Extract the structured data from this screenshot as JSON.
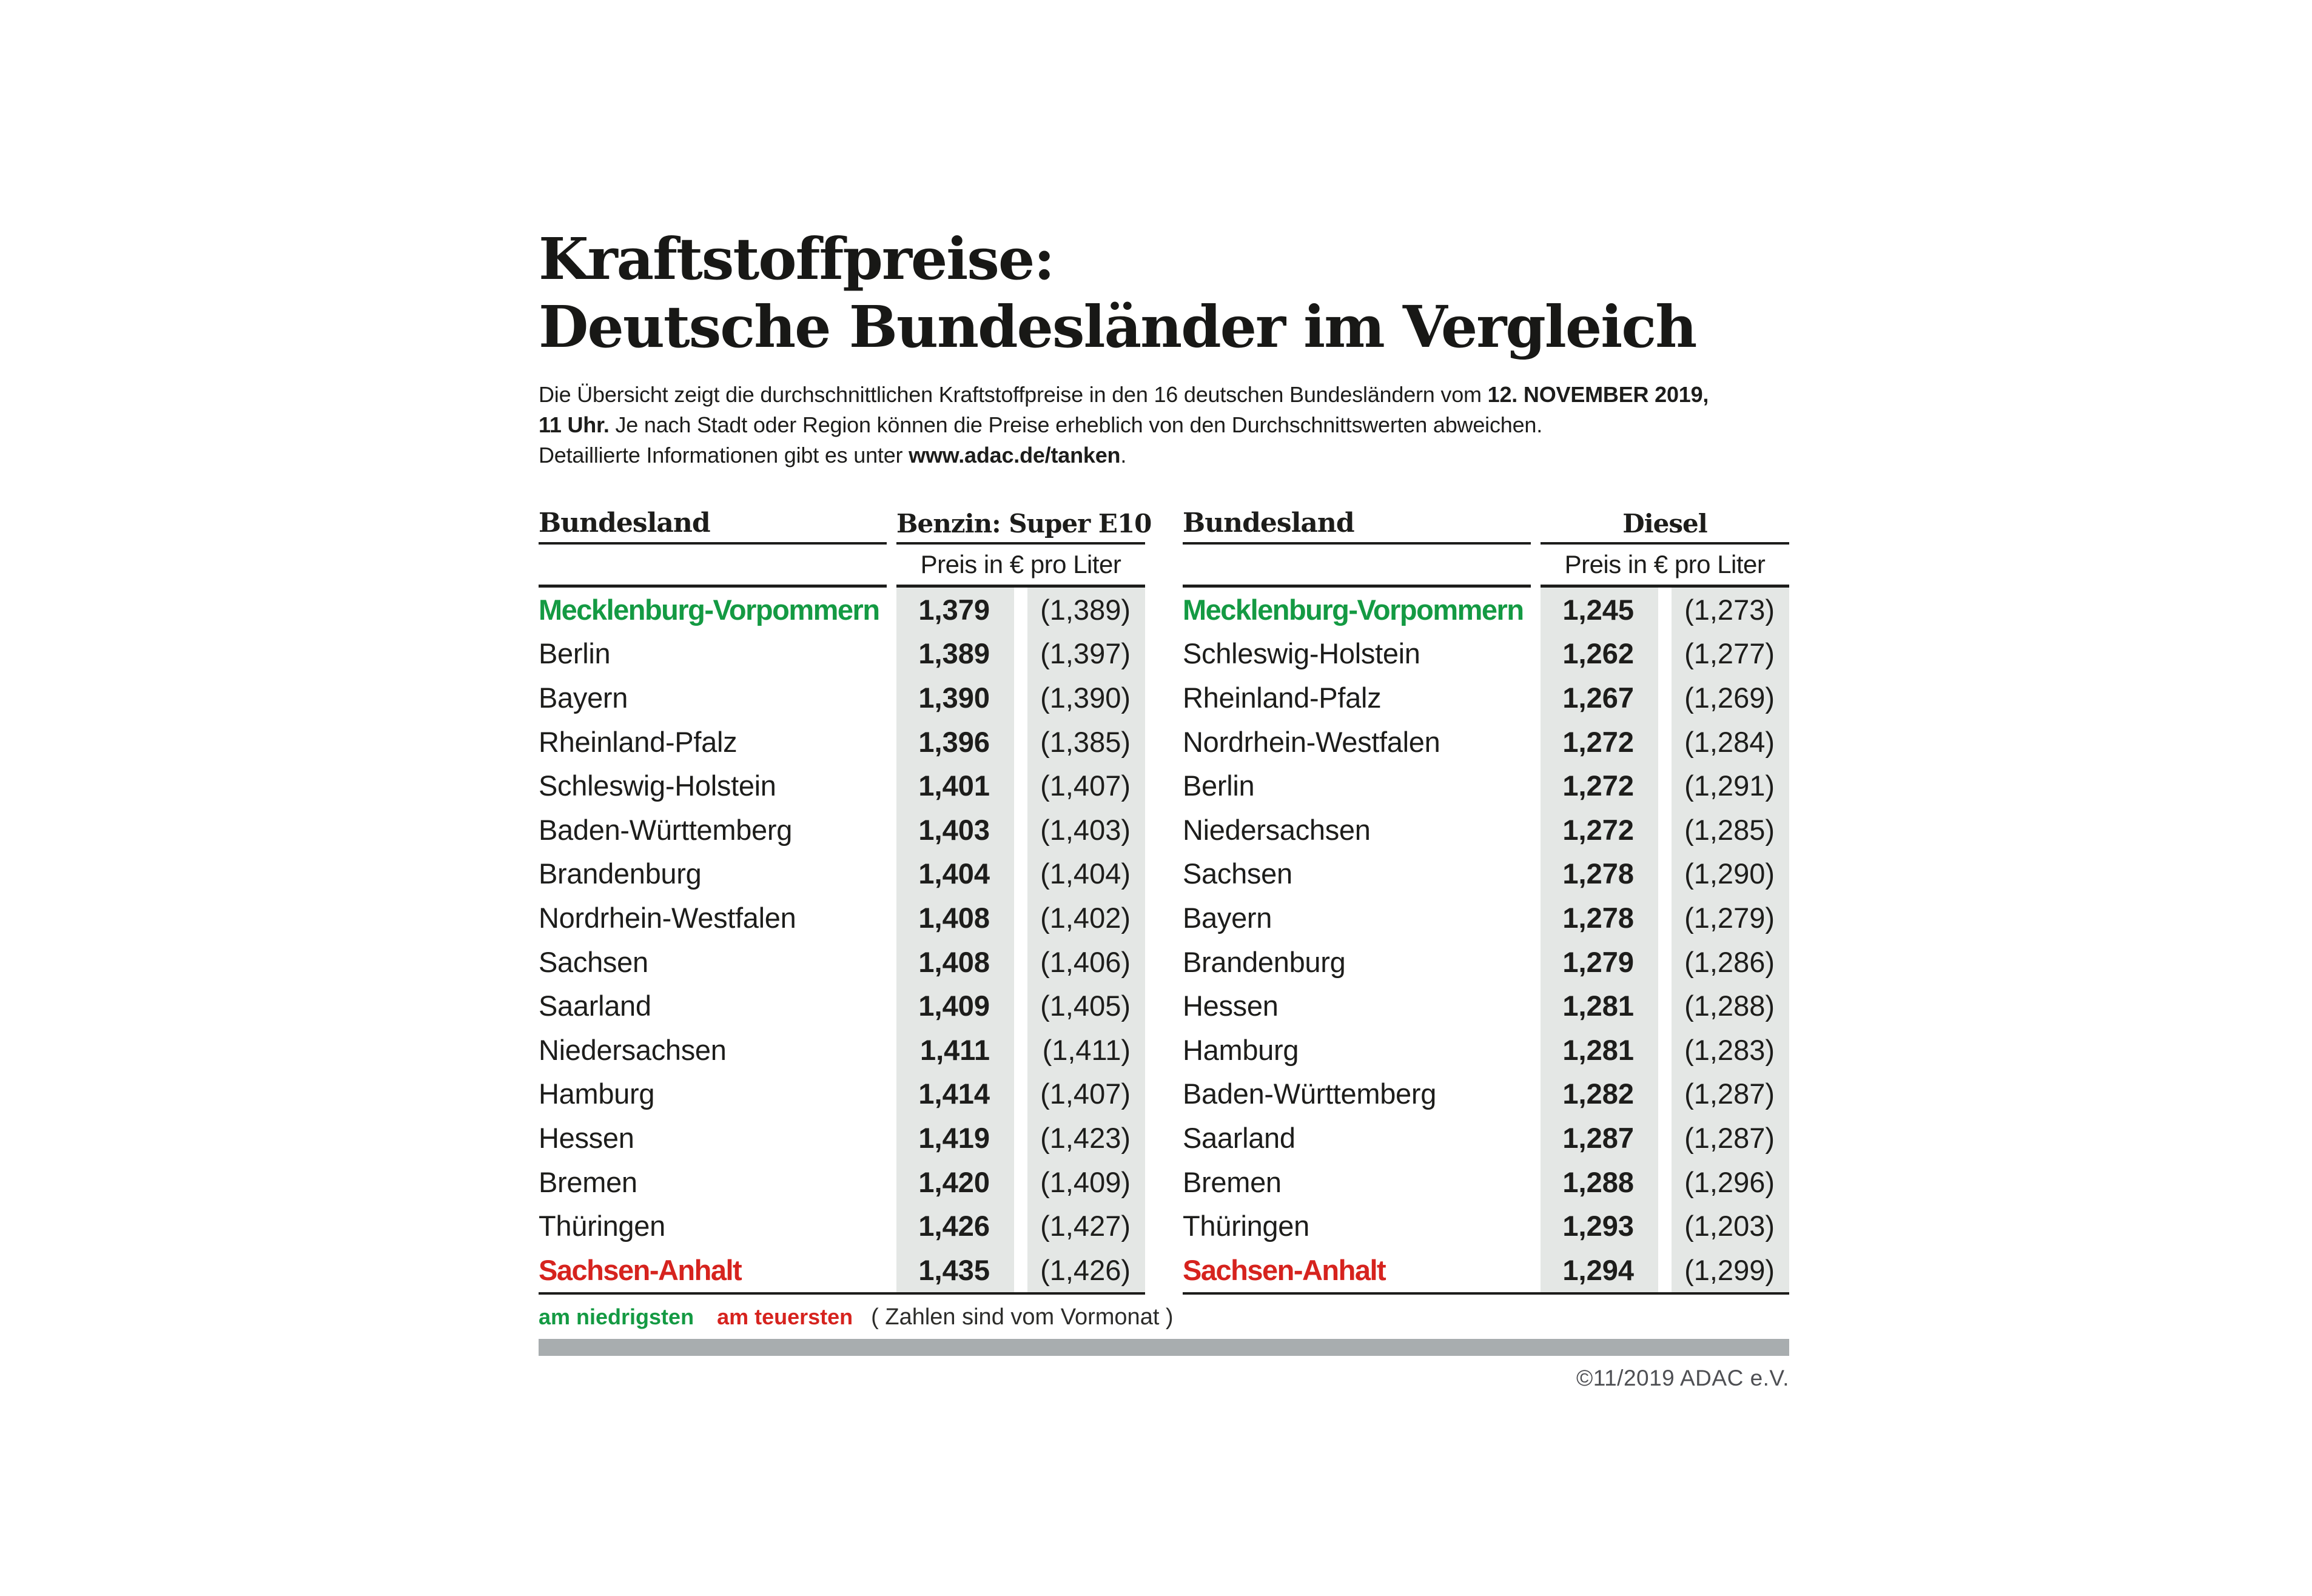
{
  "title": {
    "line1": "Kraftstoffpreise:",
    "line2": "Deutsche Bundesländer im Vergleich"
  },
  "intro": {
    "lines": [
      [
        {
          "t": "Die Übersicht zeigt die durchschnittlichen Kraftstoffpreise in den 16 deutschen Bundesländern vom ",
          "b": false
        },
        {
          "t": "12. NOVEMBER 2019,",
          "b": true
        }
      ],
      [
        {
          "t": "11 Uhr.",
          "b": true
        },
        {
          "t": " Je nach Stadt oder Region können die Preise erheblich von den Durchschnittswerten abweichen.",
          "b": false
        }
      ],
      [
        {
          "t": "Detaillierte Informationen gibt es unter ",
          "b": false
        },
        {
          "t": "www.adac.de/tanken",
          "b": true
        },
        {
          "t": ".",
          "b": false
        }
      ]
    ]
  },
  "tables": [
    {
      "id": "benzin",
      "col_state": "Bundesland",
      "col_fuel": "Benzin: Super E10",
      "subheader": "Preis in € pro Liter",
      "rows": [
        {
          "state": "Mecklenburg-Vorpommern",
          "price": "1,379",
          "prev": "(1,389)",
          "highlight": "lowest"
        },
        {
          "state": "Berlin",
          "price": "1,389",
          "prev": "(1,397)",
          "highlight": ""
        },
        {
          "state": "Bayern",
          "price": "1,390",
          "prev": "(1,390)",
          "highlight": ""
        },
        {
          "state": "Rheinland-Pfalz",
          "price": "1,396",
          "prev": "(1,385)",
          "highlight": ""
        },
        {
          "state": "Schleswig-Holstein",
          "price": "1,401",
          "prev": "(1,407)",
          "highlight": ""
        },
        {
          "state": "Baden-Württemberg",
          "price": "1,403",
          "prev": "(1,403)",
          "highlight": ""
        },
        {
          "state": "Brandenburg",
          "price": "1,404",
          "prev": "(1,404)",
          "highlight": ""
        },
        {
          "state": "Nordrhein-Westfalen",
          "price": "1,408",
          "prev": "(1,402)",
          "highlight": ""
        },
        {
          "state": "Sachsen",
          "price": "1,408",
          "prev": "(1,406)",
          "highlight": ""
        },
        {
          "state": "Saarland",
          "price": "1,409",
          "prev": "(1,405)",
          "highlight": ""
        },
        {
          "state": "Niedersachsen",
          "price": "1,411",
          "prev": "(1,411)",
          "highlight": ""
        },
        {
          "state": "Hamburg",
          "price": "1,414",
          "prev": "(1,407)",
          "highlight": ""
        },
        {
          "state": "Hessen",
          "price": "1,419",
          "prev": "(1,423)",
          "highlight": ""
        },
        {
          "state": "Bremen",
          "price": "1,420",
          "prev": "(1,409)",
          "highlight": ""
        },
        {
          "state": "Thüringen",
          "price": "1,426",
          "prev": "(1,427)",
          "highlight": ""
        },
        {
          "state": "Sachsen-Anhalt",
          "price": "1,435",
          "prev": "(1,426)",
          "highlight": "highest"
        }
      ]
    },
    {
      "id": "diesel",
      "col_state": "Bundesland",
      "col_fuel": "Diesel",
      "subheader": "Preis in € pro Liter",
      "rows": [
        {
          "state": "Mecklenburg-Vorpommern",
          "price": "1,245",
          "prev": "(1,273)",
          "highlight": "lowest"
        },
        {
          "state": "Schleswig-Holstein",
          "price": "1,262",
          "prev": "(1,277)",
          "highlight": ""
        },
        {
          "state": "Rheinland-Pfalz",
          "price": "1,267",
          "prev": "(1,269)",
          "highlight": ""
        },
        {
          "state": "Nordrhein-Westfalen",
          "price": "1,272",
          "prev": "(1,284)",
          "highlight": ""
        },
        {
          "state": "Berlin",
          "price": "1,272",
          "prev": "(1,291)",
          "highlight": ""
        },
        {
          "state": "Niedersachsen",
          "price": "1,272",
          "prev": "(1,285)",
          "highlight": ""
        },
        {
          "state": "Sachsen",
          "price": "1,278",
          "prev": "(1,290)",
          "highlight": ""
        },
        {
          "state": "Bayern",
          "price": "1,278",
          "prev": "(1,279)",
          "highlight": ""
        },
        {
          "state": "Brandenburg",
          "price": "1,279",
          "prev": "(1,286)",
          "highlight": ""
        },
        {
          "state": "Hessen",
          "price": "1,281",
          "prev": "(1,288)",
          "highlight": ""
        },
        {
          "state": "Hamburg",
          "price": "1,281",
          "prev": "(1,283)",
          "highlight": ""
        },
        {
          "state": "Baden-Württemberg",
          "price": "1,282",
          "prev": "(1,287)",
          "highlight": ""
        },
        {
          "state": "Saarland",
          "price": "1,287",
          "prev": "(1,287)",
          "highlight": ""
        },
        {
          "state": "Bremen",
          "price": "1,288",
          "prev": "(1,296)",
          "highlight": ""
        },
        {
          "state": "Thüringen",
          "price": "1,293",
          "prev": "(1,203)",
          "highlight": ""
        },
        {
          "state": "Sachsen-Anhalt",
          "price": "1,294",
          "prev": "(1,299)",
          "highlight": "highest"
        }
      ]
    }
  ],
  "legend": {
    "lowest": "am niedrigsten",
    "highest": "am teuersten",
    "note": "( Zahlen sind vom Vormonat )"
  },
  "footer": {
    "copyright": "©11/2019 ADAC e.V."
  },
  "colors": {
    "lowest_green": "#149a43",
    "highest_red": "#d6231e",
    "price_cell_bg": "#e4e7e5",
    "footer_bar": "#a8adaf",
    "text_ink": "#1d1d1b"
  }
}
